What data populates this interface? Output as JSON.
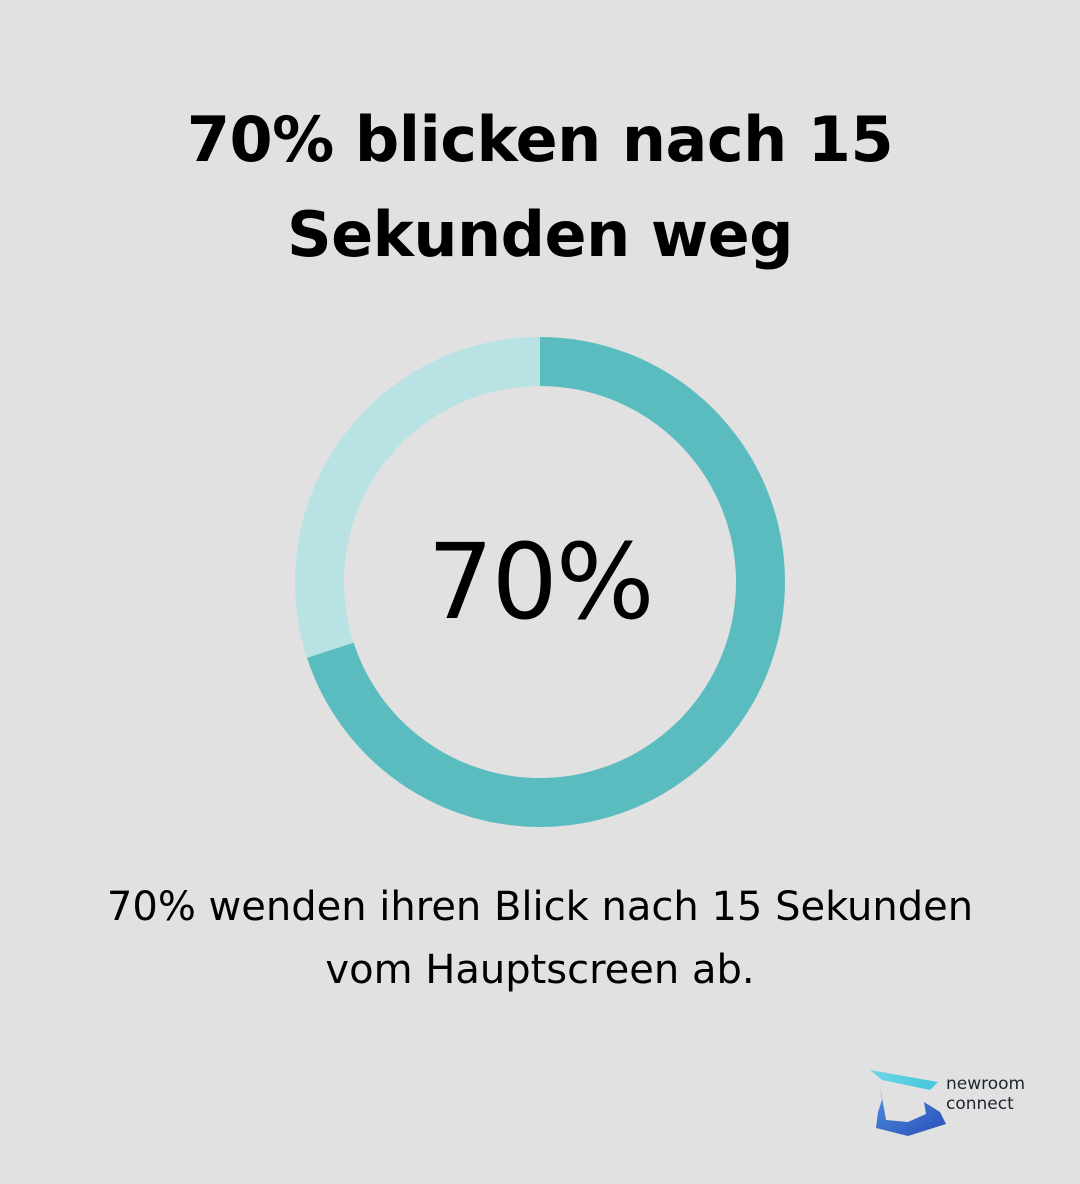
{
  "title": "70% blicken nach 15 Sekunden weg",
  "chart_data": {
    "type": "pie",
    "style": "donut",
    "center_label": "70%",
    "slices": [
      {
        "value": 70,
        "color": "#5bbcc0"
      },
      {
        "value": 30,
        "color": "#b9e2e5"
      }
    ]
  },
  "caption": "70% wenden ihren Blick nach 15 Sekunden vom Hauptscreen ab.",
  "logo": {
    "line1": "newroom",
    "line2": "connect"
  }
}
